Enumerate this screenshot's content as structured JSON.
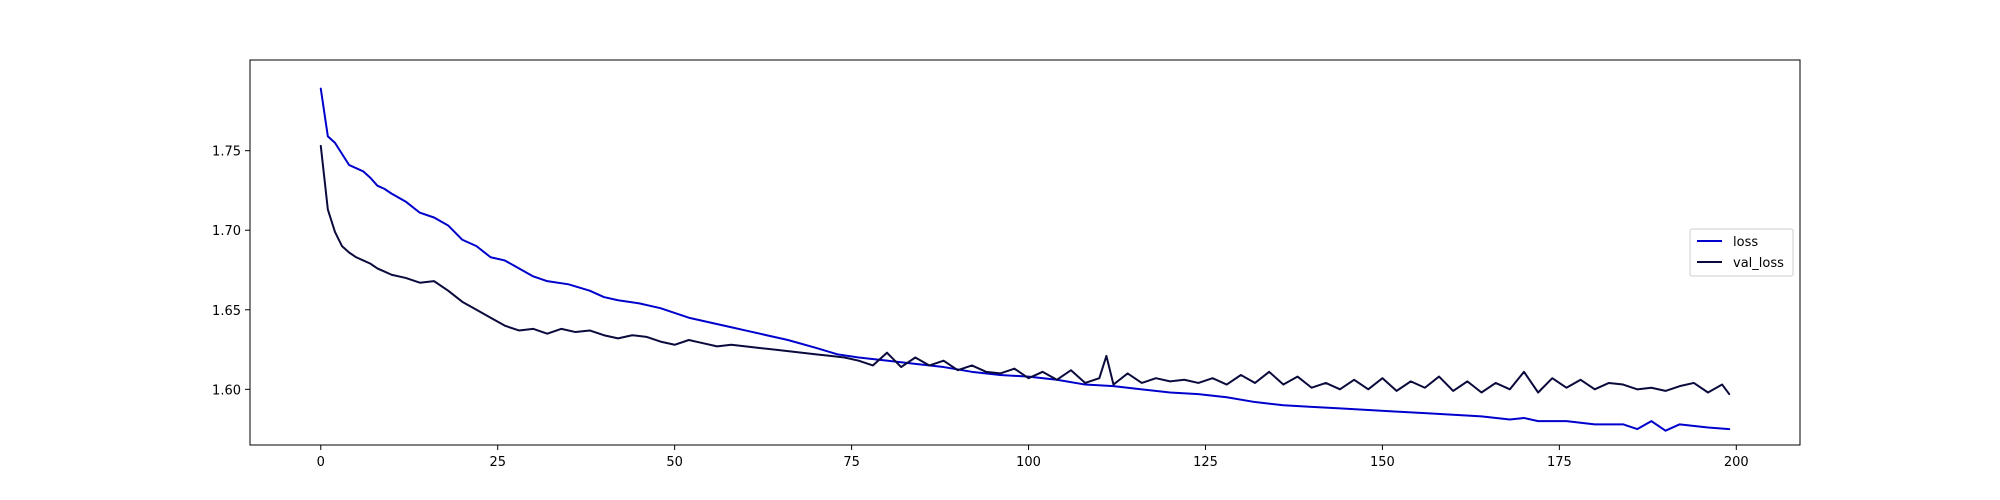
{
  "chart_data": {
    "type": "line",
    "title": "",
    "xlabel": "",
    "ylabel": "",
    "xlim": [
      -10,
      209
    ],
    "ylim": [
      1.565,
      1.807
    ],
    "xticks": [
      0,
      25,
      50,
      75,
      100,
      125,
      150,
      175,
      200
    ],
    "xtick_labels": [
      "0",
      "25",
      "50",
      "75",
      "100",
      "125",
      "150",
      "175",
      "200"
    ],
    "yticks": [
      1.6,
      1.65,
      1.7,
      1.75
    ],
    "ytick_labels": [
      "1.60",
      "1.65",
      "1.70",
      "1.75"
    ],
    "grid": false,
    "legend_position": "center-right",
    "series": [
      {
        "name": "loss",
        "color": "#0000cc",
        "x": [
          0,
          1,
          2,
          3,
          4,
          5,
          6,
          7,
          8,
          9,
          10,
          12,
          14,
          16,
          18,
          20,
          22,
          24,
          26,
          28,
          30,
          32,
          35,
          38,
          40,
          42,
          45,
          48,
          50,
          52,
          55,
          58,
          60,
          63,
          66,
          70,
          73,
          76,
          80,
          84,
          88,
          92,
          96,
          100,
          104,
          108,
          112,
          116,
          120,
          124,
          128,
          132,
          136,
          140,
          144,
          148,
          152,
          156,
          160,
          164,
          168,
          170,
          172,
          176,
          180,
          184,
          186,
          188,
          190,
          192,
          196,
          199
        ],
        "y": [
          1.789,
          1.759,
          1.755,
          1.748,
          1.741,
          1.739,
          1.737,
          1.733,
          1.728,
          1.726,
          1.723,
          1.718,
          1.711,
          1.708,
          1.703,
          1.694,
          1.69,
          1.683,
          1.681,
          1.676,
          1.671,
          1.668,
          1.666,
          1.662,
          1.658,
          1.656,
          1.654,
          1.651,
          1.648,
          1.645,
          1.642,
          1.639,
          1.637,
          1.634,
          1.631,
          1.626,
          1.622,
          1.62,
          1.618,
          1.616,
          1.614,
          1.611,
          1.609,
          1.608,
          1.606,
          1.603,
          1.602,
          1.6,
          1.598,
          1.597,
          1.595,
          1.592,
          1.59,
          1.589,
          1.588,
          1.587,
          1.586,
          1.585,
          1.584,
          1.583,
          1.581,
          1.582,
          1.58,
          1.58,
          1.578,
          1.578,
          1.575,
          1.58,
          1.574,
          1.578,
          1.576,
          1.575
        ]
      },
      {
        "name": "val_loss",
        "color": "#0a0a3c",
        "x": [
          0,
          1,
          2,
          3,
          4,
          5,
          6,
          7,
          8,
          9,
          10,
          12,
          14,
          16,
          18,
          20,
          22,
          24,
          26,
          28,
          30,
          32,
          34,
          36,
          38,
          40,
          42,
          44,
          46,
          48,
          50,
          52,
          54,
          56,
          58,
          60,
          62,
          64,
          66,
          68,
          70,
          72,
          74,
          76,
          78,
          80,
          82,
          84,
          86,
          88,
          90,
          92,
          94,
          96,
          98,
          100,
          102,
          104,
          106,
          108,
          110,
          111,
          112,
          114,
          116,
          118,
          120,
          122,
          124,
          126,
          128,
          130,
          132,
          134,
          136,
          138,
          140,
          142,
          144,
          146,
          148,
          150,
          152,
          154,
          156,
          158,
          160,
          162,
          164,
          166,
          168,
          170,
          172,
          174,
          176,
          178,
          180,
          182,
          184,
          186,
          188,
          190,
          192,
          194,
          196,
          198,
          199
        ],
        "y": [
          1.753,
          1.713,
          1.699,
          1.69,
          1.686,
          1.683,
          1.681,
          1.679,
          1.676,
          1.674,
          1.672,
          1.67,
          1.667,
          1.668,
          1.662,
          1.655,
          1.65,
          1.645,
          1.64,
          1.637,
          1.638,
          1.635,
          1.638,
          1.636,
          1.637,
          1.634,
          1.632,
          1.634,
          1.633,
          1.63,
          1.628,
          1.631,
          1.629,
          1.627,
          1.628,
          1.627,
          1.626,
          1.625,
          1.624,
          1.623,
          1.622,
          1.621,
          1.62,
          1.618,
          1.615,
          1.623,
          1.614,
          1.62,
          1.615,
          1.618,
          1.612,
          1.615,
          1.611,
          1.61,
          1.613,
          1.607,
          1.611,
          1.606,
          1.612,
          1.604,
          1.607,
          1.621,
          1.603,
          1.61,
          1.604,
          1.607,
          1.605,
          1.606,
          1.604,
          1.607,
          1.603,
          1.609,
          1.604,
          1.611,
          1.603,
          1.608,
          1.601,
          1.604,
          1.6,
          1.606,
          1.6,
          1.607,
          1.599,
          1.605,
          1.601,
          1.608,
          1.599,
          1.605,
          1.598,
          1.604,
          1.6,
          1.611,
          1.598,
          1.607,
          1.601,
          1.606,
          1.6,
          1.604,
          1.603,
          1.6,
          1.601,
          1.599,
          1.602,
          1.604,
          1.598,
          1.603,
          1.597
        ]
      }
    ]
  }
}
